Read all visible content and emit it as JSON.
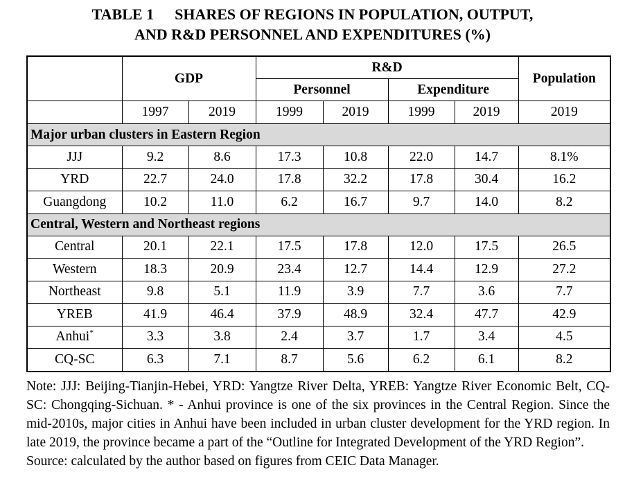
{
  "title": {
    "number": "TABLE 1",
    "line1": "SHARES OF REGIONS IN POPULATION, OUTPUT,",
    "line2": "AND R&D PERSONNEL AND EXPENDITURES (%)"
  },
  "header": {
    "gdp": "GDP",
    "rd": "R&D",
    "personnel": "Personnel",
    "expenditure": "Expenditure",
    "population": "Population",
    "years": [
      "1997",
      "2019",
      "1999",
      "2019",
      "1999",
      "2019",
      "2019"
    ]
  },
  "sections": [
    {
      "title": "Major urban clusters in Eastern Region",
      "rows": [
        {
          "label": "JJJ",
          "values": [
            "9.2",
            "8.6",
            "17.3",
            "10.8",
            "22.0",
            "14.7",
            "8.1%"
          ]
        },
        {
          "label": "YRD",
          "values": [
            "22.7",
            "24.0",
            "17.8",
            "32.2",
            "17.8",
            "30.4",
            "16.2"
          ]
        },
        {
          "label": "Guangdong",
          "values": [
            "10.2",
            "11.0",
            "6.2",
            "16.7",
            "9.7",
            "14.0",
            "8.2"
          ]
        }
      ]
    },
    {
      "title": "Central, Western and Northeast regions",
      "rows": [
        {
          "label": "Central",
          "values": [
            "20.1",
            "22.1",
            "17.5",
            "17.8",
            "12.0",
            "17.5",
            "26.5"
          ]
        },
        {
          "label": "Western",
          "values": [
            "18.3",
            "20.9",
            "23.4",
            "12.7",
            "14.4",
            "12.9",
            "27.2"
          ]
        },
        {
          "label": "Northeast",
          "values": [
            "9.8",
            "5.1",
            "11.9",
            "3.9",
            "7.7",
            "3.6",
            "7.7"
          ]
        },
        {
          "label": "YREB",
          "values": [
            "41.9",
            "46.4",
            "37.9",
            "48.9",
            "32.4",
            "47.7",
            "42.9"
          ]
        },
        {
          "label": "Anhui",
          "mark": "*",
          "values": [
            "3.3",
            "3.8",
            "2.4",
            "3.7",
            "1.7",
            "3.4",
            "4.5"
          ]
        },
        {
          "label": "CQ-SC",
          "values": [
            "6.3",
            "7.1",
            "8.7",
            "5.6",
            "6.2",
            "6.1",
            "8.2"
          ]
        }
      ]
    }
  ],
  "note": "Note: JJJ: Beijing-Tianjin-Hebei, YRD: Yangtze River Delta, YREB: Yangtze River Economic Belt, CQ-SC: Chongqing-Sichuan. * - Anhui province is one of the six provinces in the Central Region. Since the mid-2010s, major cities in Anhui have been included in urban cluster development for the YRD region. In late 2019, the province became a part of the “Outline for Integrated Development of the YRD Region”.",
  "source": "Source: calculated by the author based on figures from CEIC Data Manager."
}
